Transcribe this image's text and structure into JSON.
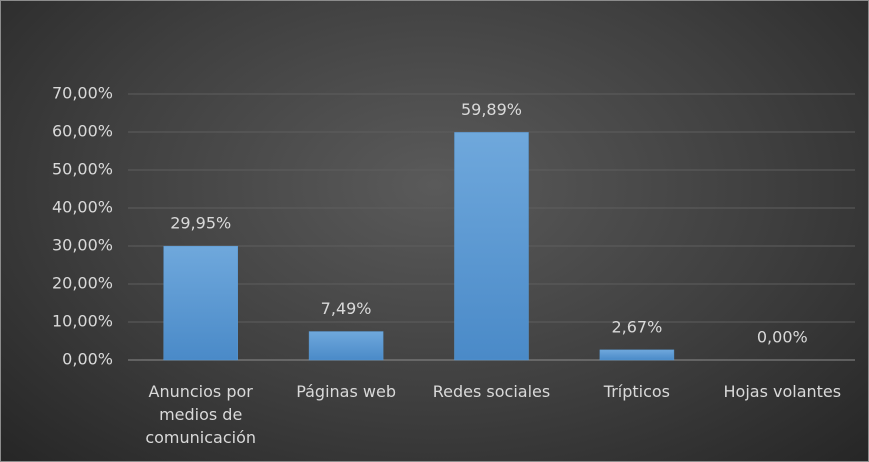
{
  "chart_data": {
    "type": "bar",
    "categories": [
      "Anuncios por medios de comunicación",
      "Páginas web",
      "Redes sociales",
      "Trípticos",
      "Hojas volantes"
    ],
    "values": [
      29.95,
      7.49,
      59.89,
      2.67,
      0.0
    ],
    "value_labels": [
      "29,95%",
      "7,49%",
      "59,89%",
      "2,67%",
      "0,00%"
    ],
    "color": "#5b9bd5",
    "ylim": [
      0,
      70
    ],
    "yticks": [
      {
        "value": 0,
        "label": "0,00%"
      },
      {
        "value": 10,
        "label": "10,00%"
      },
      {
        "value": 20,
        "label": "20,00%"
      },
      {
        "value": 30,
        "label": "30,00%"
      },
      {
        "value": 40,
        "label": "40,00%"
      },
      {
        "value": 50,
        "label": "50,00%"
      },
      {
        "value": 60,
        "label": "60,00%"
      },
      {
        "value": 70,
        "label": "70,00%"
      }
    ],
    "grid": true
  }
}
